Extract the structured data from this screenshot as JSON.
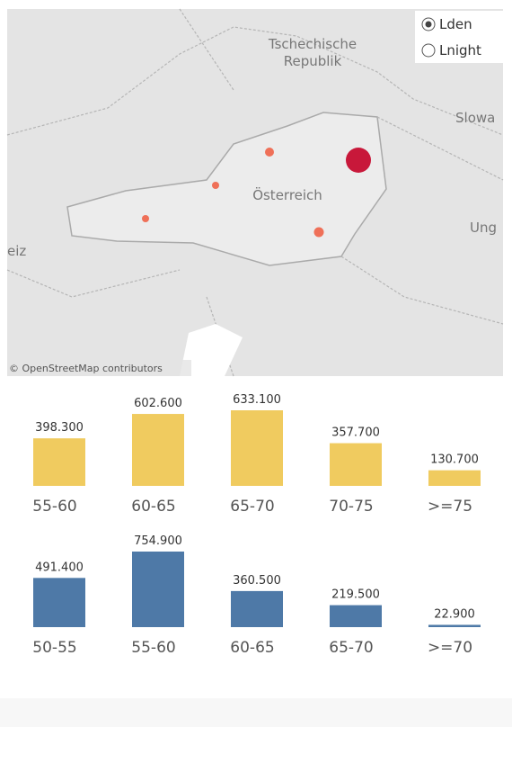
{
  "map": {
    "labels": [
      "Tschechische",
      "Republik",
      "Slowa",
      "Österreich",
      "Ung",
      "eiz"
    ],
    "attribution": "© OpenStreetMap contributors",
    "options": [
      "Lden",
      "Lnight"
    ]
  },
  "chart_data": [
    {
      "type": "bar",
      "categories": [
        "55-60",
        "60-65",
        "65-70",
        "70-75",
        ">=75"
      ],
      "values": [
        398300,
        602600,
        633100,
        357700,
        130700
      ],
      "value_labels": [
        "398.300",
        "602.600",
        "633.100",
        "357.700",
        "130.700"
      ],
      "color": "#f0cb5f"
    },
    {
      "type": "bar",
      "categories": [
        "50-55",
        "55-60",
        "60-65",
        "65-70",
        ">=70"
      ],
      "values": [
        491400,
        754900,
        360500,
        219500,
        22900
      ],
      "value_labels": [
        "491.400",
        "754.900",
        "360.500",
        "219.500",
        "22.900"
      ],
      "color": "#4e79a7"
    }
  ]
}
